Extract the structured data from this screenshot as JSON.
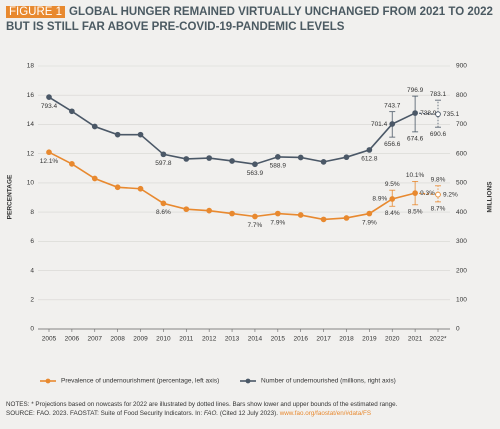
{
  "figure_label": "FIGURE 1",
  "chart_data": {
    "type": "line",
    "title": "GLOBAL HUNGER REMAINED VIRTUALLY UNCHANGED FROM 2021 TO 2022 BUT IS STILL FAR ABOVE PRE-COVID-19-PANDEMIC LEVELS",
    "ylabel": "PERCENTAGE",
    "y2label": "MILLIONS",
    "categories": [
      "2005",
      "2006",
      "2007",
      "2008",
      "2009",
      "2010",
      "2011",
      "2012",
      "2013",
      "2014",
      "2015",
      "2016",
      "2017",
      "2018",
      "2019",
      "2020",
      "2021",
      "2022*"
    ],
    "ylim": [
      0,
      18
    ],
    "yticks": [
      0,
      2,
      4,
      6,
      8,
      10,
      12,
      14,
      16,
      18
    ],
    "y2lim": [
      0,
      900
    ],
    "y2ticks": [
      0,
      100,
      200,
      300,
      400,
      500,
      600,
      700,
      800,
      900
    ],
    "grid": true,
    "projected_last": true,
    "legend": "bottom",
    "series": [
      {
        "name": "Prevalence of undernourishment (percentage, left axis)",
        "color": "#e8892f",
        "values": [
          12.1,
          11.3,
          10.3,
          9.7,
          9.6,
          8.6,
          8.2,
          8.1,
          7.9,
          7.7,
          7.9,
          7.8,
          7.5,
          7.6,
          7.9,
          8.9,
          9.3,
          9.2
        ],
        "value_labels": [
          "12.1%",
          null,
          null,
          null,
          null,
          "8.6%",
          null,
          null,
          null,
          "7.7%",
          "7.9%",
          null,
          null,
          null,
          "7.9%",
          "8.9%",
          "9.3%",
          "9.2%"
        ],
        "lower": [
          null,
          null,
          null,
          null,
          null,
          null,
          null,
          null,
          null,
          null,
          null,
          null,
          null,
          null,
          null,
          8.4,
          8.5,
          8.7
        ],
        "lower_labels": [
          null,
          null,
          null,
          null,
          null,
          null,
          null,
          null,
          null,
          null,
          null,
          null,
          null,
          null,
          null,
          "8.4%",
          "8.5%",
          "8.7%"
        ],
        "upper": [
          null,
          null,
          null,
          null,
          null,
          null,
          null,
          null,
          null,
          null,
          null,
          null,
          null,
          null,
          null,
          9.5,
          10.1,
          9.8
        ],
        "upper_labels": [
          null,
          null,
          null,
          null,
          null,
          null,
          null,
          null,
          null,
          null,
          null,
          null,
          null,
          null,
          null,
          "9.5%",
          "10.1%",
          "9.8%"
        ]
      },
      {
        "name": "Number of undernourished (millions, right axis)",
        "color": "#4b5867",
        "axis": "y2",
        "values": [
          793.4,
          745,
          693,
          665,
          665,
          597.8,
          582,
          585,
          575,
          563.9,
          588.9,
          587,
          572,
          588,
          612.8,
          701.4,
          738.9,
          735.1
        ],
        "value_labels": [
          "793.4",
          null,
          null,
          null,
          null,
          "597.8",
          null,
          null,
          null,
          "563.9",
          "588.9",
          null,
          null,
          null,
          "612.8",
          "701.4",
          "738.9",
          "735.1"
        ],
        "lower": [
          null,
          null,
          null,
          null,
          null,
          null,
          null,
          null,
          null,
          null,
          null,
          null,
          null,
          null,
          null,
          656.6,
          674.6,
          690.6
        ],
        "lower_labels": [
          null,
          null,
          null,
          null,
          null,
          null,
          null,
          null,
          null,
          null,
          null,
          null,
          null,
          null,
          null,
          "656.6",
          "674.6",
          "690.6"
        ],
        "upper": [
          null,
          null,
          null,
          null,
          null,
          null,
          null,
          null,
          null,
          null,
          null,
          null,
          null,
          null,
          null,
          743.7,
          796.9,
          783.1
        ],
        "upper_labels": [
          null,
          null,
          null,
          null,
          null,
          null,
          null,
          null,
          null,
          null,
          null,
          null,
          null,
          null,
          null,
          "743.7",
          "796.9",
          "783.1"
        ]
      }
    ]
  },
  "notes": "NOTES: * Projections based on nowcasts for 2022 are illustrated by dotted lines. Bars show lower and upper bounds of the estimated range.",
  "source": {
    "text": "SOURCE: FAO. 2023. FAOSTAT: Suite of Food Security Indicators. In:",
    "italic": "FAO.",
    "cited": "(Cited 12 July 2023).",
    "link": "www.fao.org/faostat/en/#data/FS"
  }
}
